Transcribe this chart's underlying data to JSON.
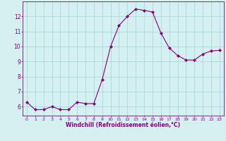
{
  "x": [
    0,
    1,
    2,
    3,
    4,
    5,
    6,
    7,
    8,
    9,
    10,
    11,
    12,
    13,
    14,
    15,
    16,
    17,
    18,
    19,
    20,
    21,
    22,
    23
  ],
  "y": [
    6.3,
    5.8,
    5.8,
    6.0,
    5.8,
    5.8,
    6.3,
    6.2,
    6.2,
    7.8,
    10.0,
    11.4,
    12.0,
    12.5,
    12.4,
    12.3,
    10.9,
    9.9,
    9.4,
    9.1,
    9.1,
    9.5,
    9.7,
    9.75
  ],
  "line_color": "#800080",
  "marker": "D",
  "marker_size": 2.0,
  "bg_color": "#d5f0f0",
  "grid_color": "#b0d8d8",
  "xlabel": "Windchill (Refroidissement éolien,°C)",
  "xlabel_color": "#800080",
  "tick_color": "#800080",
  "ylim": [
    5.4,
    13.0
  ],
  "yticks": [
    6,
    7,
    8,
    9,
    10,
    11,
    12
  ],
  "xticks": [
    0,
    1,
    2,
    3,
    4,
    5,
    6,
    7,
    8,
    9,
    10,
    11,
    12,
    13,
    14,
    15,
    16,
    17,
    18,
    19,
    20,
    21,
    22,
    23
  ],
  "spine_color": "#800080",
  "axis_bg": "#d5f0f0",
  "xlabel_fontsize": 5.5,
  "tick_fontsize_x": 4.5,
  "tick_fontsize_y": 5.5
}
